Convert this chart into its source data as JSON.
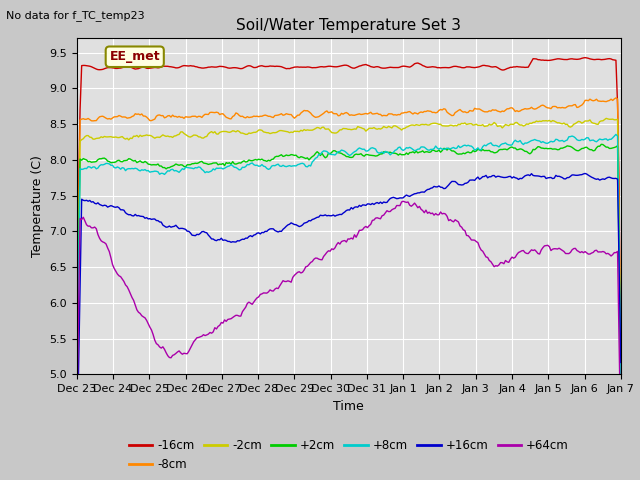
{
  "title": "Soil/Water Temperature Set 3",
  "top_left_text": "No data for f_TC_temp23",
  "xlabel": "Time",
  "ylabel": "Temperature (C)",
  "ylim": [
    5.0,
    9.7
  ],
  "yticks": [
    5.0,
    5.5,
    6.0,
    6.5,
    7.0,
    7.5,
    8.0,
    8.5,
    9.0,
    9.5
  ],
  "annotation_box": "EE_met",
  "fig_bg_color": "#c8c8c8",
  "plot_bg_color": "#e0e0e0",
  "series_colors": {
    "-16cm": "#cc0000",
    "-8cm": "#ff8800",
    "-2cm": "#cccc00",
    "+2cm": "#00cc00",
    "+8cm": "#00cccc",
    "+16cm": "#0000cc",
    "+64cm": "#aa00aa"
  },
  "x_tick_labels": [
    "Dec 23",
    "Dec 24",
    "Dec 25",
    "Dec 26",
    "Dec 27",
    "Dec 28",
    "Dec 29",
    "Dec 30",
    "Dec 31",
    "Jan 1",
    "Jan 2",
    "Jan 3",
    "Jan 4",
    "Jan 5",
    "Jan 6",
    "Jan 7"
  ],
  "n_points": 336,
  "total_days": 15
}
